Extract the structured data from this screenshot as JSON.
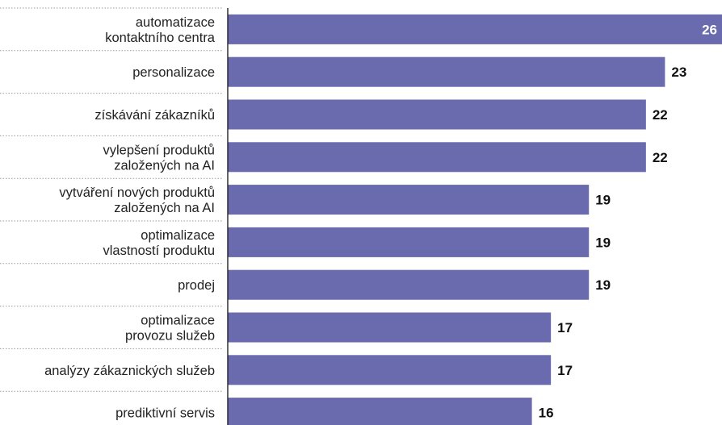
{
  "chart_data": {
    "type": "bar",
    "orientation": "horizontal",
    "categories": [
      [
        "automatizace",
        "kontaktního centra"
      ],
      [
        "personalizace"
      ],
      [
        "získávání zákazníků"
      ],
      [
        "vylepšení produktů",
        "založených na AI"
      ],
      [
        "vytváření nových produktů",
        "založených na AI"
      ],
      [
        "optimalizace",
        "vlastností produktu"
      ],
      [
        "prodej"
      ],
      [
        "optimalizace",
        "provozu služeb"
      ],
      [
        "analýzy zákaznických služeb"
      ],
      [
        "prediktivní servis"
      ]
    ],
    "values": [
      26,
      23,
      22,
      22,
      19,
      19,
      19,
      17,
      17,
      16
    ],
    "value_labels": [
      "26",
      "23",
      "22",
      "22",
      "19",
      "19",
      "19",
      "17",
      "17",
      "16"
    ],
    "xlim": [
      0,
      26
    ],
    "grid": false,
    "legend": "none",
    "colors": {
      "bar": "#6a6aae",
      "value_inside": "#ffffff",
      "value_outside": "#111111",
      "separator": "#9a9a9a",
      "axis": "#222222"
    }
  }
}
